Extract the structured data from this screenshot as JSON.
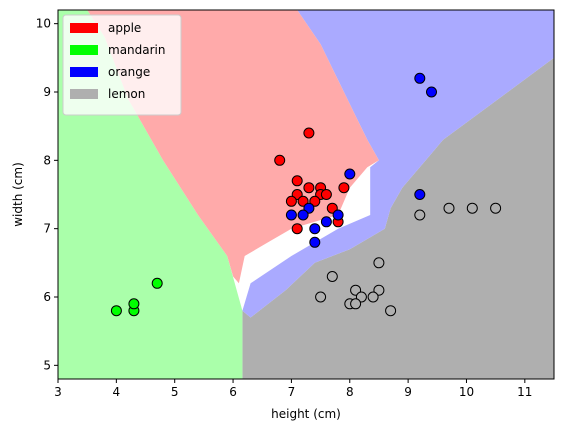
{
  "chart_data": {
    "type": "scatter",
    "xlabel": "height (cm)",
    "ylabel": "width (cm)",
    "xlim": [
      3,
      11.5
    ],
    "ylim": [
      4.8,
      10.2
    ],
    "xticks": [
      3,
      4,
      5,
      6,
      7,
      8,
      9,
      10,
      11
    ],
    "yticks": [
      5,
      6,
      7,
      8,
      9,
      10
    ],
    "grid": false,
    "legend_position": "top-left",
    "series": [
      {
        "name": "apple",
        "color": "#ff0000",
        "region_color": "#ffaaaa",
        "points": [
          [
            7.3,
            8.4
          ],
          [
            6.8,
            8.0
          ],
          [
            7.1,
            7.7
          ],
          [
            7.5,
            7.6
          ],
          [
            7.3,
            7.6
          ],
          [
            7.9,
            7.6
          ],
          [
            7.1,
            7.5
          ],
          [
            7.5,
            7.5
          ],
          [
            7.6,
            7.5
          ],
          [
            7.0,
            7.4
          ],
          [
            7.2,
            7.4
          ],
          [
            7.4,
            7.4
          ],
          [
            7.7,
            7.3
          ],
          [
            7.1,
            7.0
          ],
          [
            7.8,
            7.1
          ]
        ]
      },
      {
        "name": "mandarin",
        "color": "#00ff00",
        "region_color": "#aaffaa",
        "points": [
          [
            4.0,
            5.8
          ],
          [
            4.3,
            5.8
          ],
          [
            4.3,
            5.9
          ],
          [
            4.7,
            6.2
          ]
        ]
      },
      {
        "name": "orange",
        "color": "#0000ff",
        "region_color": "#aaaaff",
        "points": [
          [
            9.2,
            9.2
          ],
          [
            9.4,
            9.0
          ],
          [
            8.0,
            7.8
          ],
          [
            9.2,
            7.5
          ],
          [
            7.3,
            7.3
          ],
          [
            7.0,
            7.2
          ],
          [
            7.2,
            7.2
          ],
          [
            7.8,
            7.2
          ],
          [
            7.6,
            7.1
          ],
          [
            7.4,
            7.0
          ],
          [
            7.4,
            6.8
          ]
        ]
      },
      {
        "name": "lemon",
        "color": "#afafaf",
        "region_color": "#afafaf",
        "points": [
          [
            9.7,
            7.3
          ],
          [
            10.1,
            7.3
          ],
          [
            10.5,
            7.3
          ],
          [
            9.2,
            7.2
          ],
          [
            8.5,
            6.5
          ],
          [
            7.7,
            6.3
          ],
          [
            8.1,
            6.1
          ],
          [
            8.5,
            6.1
          ],
          [
            7.5,
            6.0
          ],
          [
            8.2,
            6.0
          ],
          [
            8.4,
            6.0
          ],
          [
            8.0,
            5.9
          ],
          [
            8.1,
            5.9
          ],
          [
            8.7,
            5.8
          ]
        ]
      }
    ],
    "decision_regions": {
      "mandarin": [
        [
          3.0,
          10.2
        ],
        [
          3.0,
          4.8
        ],
        [
          6.16,
          4.8
        ],
        [
          6.16,
          5.8
        ],
        [
          5.9,
          6.6
        ],
        [
          5.4,
          7.2
        ],
        [
          4.8,
          8.0
        ],
        [
          4.2,
          8.9
        ],
        [
          3.8,
          9.8
        ],
        [
          3.5,
          10.2
        ]
      ],
      "apple": [
        [
          3.5,
          10.2
        ],
        [
          3.8,
          9.8
        ],
        [
          4.2,
          8.9
        ],
        [
          4.8,
          8.0
        ],
        [
          5.4,
          7.2
        ],
        [
          5.9,
          6.6
        ],
        [
          6.0,
          6.3
        ],
        [
          6.1,
          6.2
        ],
        [
          6.2,
          6.6
        ],
        [
          6.6,
          6.8
        ],
        [
          7.0,
          7.0
        ],
        [
          7.4,
          7.1
        ],
        [
          7.8,
          7.2
        ],
        [
          8.0,
          7.6
        ],
        [
          8.3,
          7.9
        ],
        [
          8.5,
          8.0
        ],
        [
          8.3,
          8.3
        ],
        [
          7.9,
          9.0
        ],
        [
          7.5,
          9.7
        ],
        [
          7.1,
          10.2
        ]
      ],
      "orange": [
        [
          7.1,
          10.2
        ],
        [
          7.5,
          9.7
        ],
        [
          7.9,
          9.0
        ],
        [
          8.3,
          8.3
        ],
        [
          8.5,
          8.0
        ],
        [
          8.35,
          7.9
        ],
        [
          8.35,
          7.2
        ],
        [
          7.8,
          7.0
        ],
        [
          7.0,
          6.6
        ],
        [
          6.3,
          6.2
        ],
        [
          6.16,
          5.8
        ],
        [
          6.3,
          5.7
        ],
        [
          6.9,
          6.1
        ],
        [
          7.4,
          6.5
        ],
        [
          8.0,
          6.7
        ],
        [
          8.6,
          7.0
        ],
        [
          8.7,
          7.3
        ],
        [
          8.9,
          7.6
        ],
        [
          9.1,
          7.8
        ],
        [
          9.4,
          8.1
        ],
        [
          9.6,
          8.3
        ],
        [
          11.5,
          9.5
        ],
        [
          11.5,
          10.2
        ]
      ],
      "lemon": [
        [
          6.16,
          4.8
        ],
        [
          11.5,
          4.8
        ],
        [
          11.5,
          9.5
        ],
        [
          9.6,
          8.3
        ],
        [
          9.4,
          8.1
        ],
        [
          9.1,
          7.8
        ],
        [
          8.9,
          7.6
        ],
        [
          8.7,
          7.3
        ],
        [
          8.6,
          7.0
        ],
        [
          8.0,
          6.7
        ],
        [
          7.4,
          6.5
        ],
        [
          6.9,
          6.1
        ],
        [
          6.3,
          5.7
        ],
        [
          6.16,
          5.8
        ]
      ]
    }
  }
}
